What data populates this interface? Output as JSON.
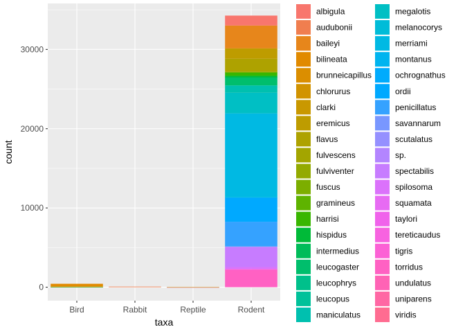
{
  "chart_data": {
    "type": "bar",
    "stacked": true,
    "xlabel": "taxa",
    "ylabel": "count",
    "categories": [
      "Bird",
      "Rabbit",
      "Reptile",
      "Rodent"
    ],
    "ylim": [
      -1700,
      35800
    ],
    "yticks": [
      0,
      10000,
      20000,
      30000
    ],
    "ytick_labels": [
      "0",
      "10000",
      "20000",
      "30000"
    ],
    "grid": true,
    "background": "#EBEBEB",
    "legend_position": "right",
    "series": [
      {
        "name": "albigula",
        "color": "#F8766D",
        "values": [
          0,
          0,
          0,
          1252
        ]
      },
      {
        "name": "audubonii",
        "color": "#F07E4F",
        "values": [
          0,
          75,
          0,
          0
        ]
      },
      {
        "name": "baileyi",
        "color": "#E7861B",
        "values": [
          0,
          0,
          0,
          2891
        ]
      },
      {
        "name": "bilineata",
        "color": "#E18A00",
        "values": [
          303,
          0,
          0,
          0
        ]
      },
      {
        "name": "brunneicapillus",
        "color": "#DB8E00",
        "values": [
          50,
          0,
          0,
          0
        ]
      },
      {
        "name": "chlorurus",
        "color": "#D19300",
        "values": [
          39,
          0,
          0,
          0
        ]
      },
      {
        "name": "clarki",
        "color": "#C99800",
        "values": [
          0,
          0,
          1,
          0
        ]
      },
      {
        "name": "eremicus",
        "color": "#BE9C00",
        "values": [
          0,
          0,
          0,
          1299
        ]
      },
      {
        "name": "flavus",
        "color": "#AEA200",
        "values": [
          0,
          0,
          0,
          1597
        ]
      },
      {
        "name": "fulvescens",
        "color": "#A3A500",
        "values": [
          0,
          0,
          0,
          75
        ]
      },
      {
        "name": "fulviventer",
        "color": "#93AA00",
        "values": [
          0,
          0,
          0,
          43
        ]
      },
      {
        "name": "fuscus",
        "color": "#7CAE00",
        "values": [
          5,
          0,
          0,
          0
        ]
      },
      {
        "name": "gramineus",
        "color": "#5EB300",
        "values": [
          0,
          0,
          0,
          8
        ]
      },
      {
        "name": "harrisi",
        "color": "#39B600",
        "values": [
          0,
          0,
          0,
          437
        ]
      },
      {
        "name": "hispidus",
        "color": "#00BA38",
        "values": [
          0,
          0,
          0,
          179
        ]
      },
      {
        "name": "intermedius",
        "color": "#00BC59",
        "values": [
          0,
          0,
          0,
          9
        ]
      },
      {
        "name": "leucogaster",
        "color": "#00BE6C",
        "values": [
          0,
          0,
          0,
          1006
        ]
      },
      {
        "name": "leucophrys",
        "color": "#00C08B",
        "values": [
          2,
          0,
          0,
          0
        ]
      },
      {
        "name": "leucopus",
        "color": "#00C19A",
        "values": [
          0,
          0,
          0,
          36
        ]
      },
      {
        "name": "maniculatus",
        "color": "#00C0AF",
        "values": [
          0,
          0,
          0,
          899
        ]
      },
      {
        "name": "megalotis",
        "color": "#00BFC4",
        "values": [
          0,
          0,
          0,
          2609
        ]
      },
      {
        "name": "melanocorys",
        "color": "#00BCD8",
        "values": [
          13,
          0,
          0,
          0
        ]
      },
      {
        "name": "merriami",
        "color": "#00B9E3",
        "values": [
          0,
          0,
          0,
          10596
        ]
      },
      {
        "name": "montanus",
        "color": "#00B4EF",
        "values": [
          0,
          0,
          0,
          8
        ]
      },
      {
        "name": "ochrognathus",
        "color": "#00ABFD",
        "values": [
          0,
          0,
          0,
          43
        ]
      },
      {
        "name": "ordii",
        "color": "#00A9FF",
        "values": [
          0,
          0,
          0,
          3027
        ]
      },
      {
        "name": "penicillatus",
        "color": "#35A2FF",
        "values": [
          0,
          0,
          0,
          3123
        ]
      },
      {
        "name": "savannarum",
        "color": "#7997FF",
        "values": [
          2,
          0,
          0,
          0
        ]
      },
      {
        "name": "scutalatus",
        "color": "#9590FF",
        "values": [
          0,
          0,
          1,
          0
        ]
      },
      {
        "name": "sp.",
        "color": "#B385FF",
        "values": [
          0,
          0,
          0,
          86
        ]
      },
      {
        "name": "spectabilis",
        "color": "#C77CFF",
        "values": [
          0,
          0,
          0,
          2504
        ]
      },
      {
        "name": "spilosoma",
        "color": "#DB72FB",
        "values": [
          0,
          0,
          0,
          248
        ]
      },
      {
        "name": "squamata",
        "color": "#E76BF3",
        "values": [
          16,
          0,
          0,
          0
        ]
      },
      {
        "name": "taylori",
        "color": "#F062EB",
        "values": [
          0,
          0,
          0,
          46
        ]
      },
      {
        "name": "tereticaudus",
        "color": "#F763E0",
        "values": [
          0,
          0,
          0,
          1
        ]
      },
      {
        "name": "tigris",
        "color": "#FC61D5",
        "values": [
          0,
          0,
          1,
          0
        ]
      },
      {
        "name": "torridus",
        "color": "#FF61C3",
        "values": [
          0,
          0,
          0,
          2249
        ]
      },
      {
        "name": "undulatus",
        "color": "#FF63B5",
        "values": [
          0,
          0,
          5,
          0
        ]
      },
      {
        "name": "uniparens",
        "color": "#FF67A4",
        "values": [
          0,
          0,
          1,
          0
        ]
      },
      {
        "name": "viridis",
        "color": "#FF6C91",
        "values": [
          0,
          0,
          1,
          0
        ]
      }
    ]
  }
}
